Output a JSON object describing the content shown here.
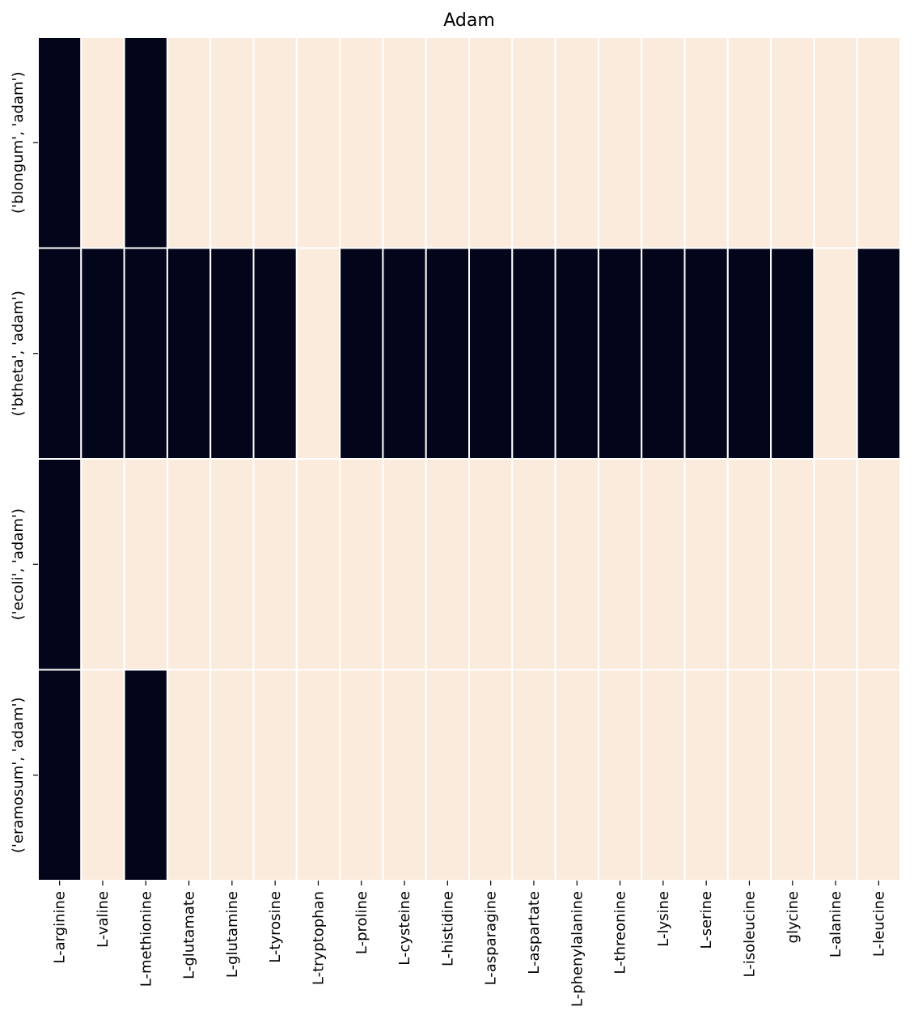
{
  "chart_data": {
    "type": "heatmap",
    "title": "Adam",
    "xlabel": "",
    "ylabel": "",
    "rows": [
      "('blongum', 'adam')",
      "('btheta', 'adam')",
      "('ecoli', 'adam')",
      "('eramosum', 'adam')"
    ],
    "columns": [
      "L-arginine",
      "L-valine",
      "L-methionine",
      "L-glutamate",
      "L-glutamine",
      "L-tyrosine",
      "L-tryptophan",
      "L-proline",
      "L-cysteine",
      "L-histidine",
      "L-asparagine",
      "L-aspartate",
      "L-phenylalanine",
      "L-threonine",
      "L-lysine",
      "L-serine",
      "L-isoleucine",
      "glycine",
      "L-alanine",
      "L-leucine"
    ],
    "values": [
      [
        1,
        0,
        1,
        0,
        0,
        0,
        0,
        0,
        0,
        0,
        0,
        0,
        0,
        0,
        0,
        0,
        0,
        0,
        0,
        0
      ],
      [
        1,
        1,
        1,
        1,
        1,
        1,
        0,
        1,
        1,
        1,
        1,
        1,
        1,
        1,
        1,
        1,
        1,
        1,
        0,
        1
      ],
      [
        1,
        0,
        0,
        0,
        0,
        0,
        0,
        0,
        0,
        0,
        0,
        0,
        0,
        0,
        0,
        0,
        0,
        0,
        0,
        0
      ],
      [
        1,
        0,
        1,
        0,
        0,
        0,
        0,
        0,
        0,
        0,
        0,
        0,
        0,
        0,
        0,
        0,
        0,
        0,
        0,
        0
      ]
    ],
    "colors": {
      "high": "#03051a",
      "low": "#faebdd",
      "cell_border": "#ffffff"
    },
    "colorbar": false
  }
}
